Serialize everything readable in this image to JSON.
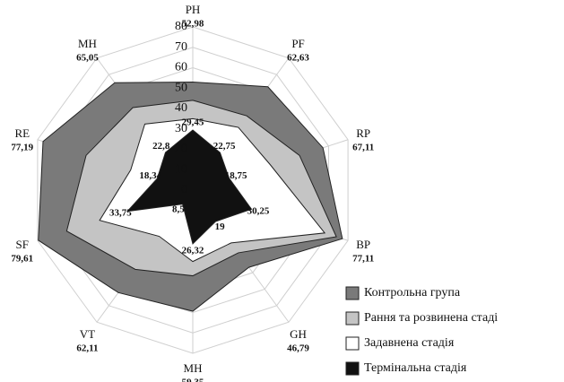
{
  "chart_data": {
    "type": "radar",
    "categories": [
      "PH",
      "PF",
      "RP",
      "BP",
      "GH",
      "MH",
      "VT",
      "SF",
      "RE",
      "MH"
    ],
    "ylim": [
      0,
      80
    ],
    "yticks": [
      0,
      10,
      20,
      30,
      40,
      50,
      60,
      70,
      80
    ],
    "grid": true,
    "legend": "lower right",
    "series": [
      {
        "name": "Контрольна група",
        "color": "#7a7a7a",
        "values": [
          52.98,
          62.63,
          67.11,
          77.11,
          46.79,
          59.35,
          62.11,
          79.61,
          77.19,
          65.05
        ],
        "value_labels": [
          "52,98",
          "62,63",
          "67,11",
          "77,11",
          "46,79",
          "59,35",
          "62,11",
          "79,61",
          "77,19",
          "65,05"
        ]
      },
      {
        "name": "Рання та розвинена стаді",
        "color": "#c4c4c4",
        "values": [
          44,
          45,
          55,
          74,
          38,
          42,
          48,
          65,
          55,
          50
        ]
      },
      {
        "name": "Задавнена стадія",
        "color": "#ffffff",
        "values": [
          35,
          38,
          40,
          68,
          32,
          35,
          28,
          48,
          32,
          40
        ]
      },
      {
        "name": "Термінальна стадія",
        "color": "#111111",
        "values": [
          29.45,
          22.75,
          18.75,
          30.25,
          19,
          26.32,
          8.5,
          33.75,
          18.34,
          22.8
        ],
        "value_labels": [
          "29,45",
          "22,75",
          "18,75",
          "30,25",
          "19",
          "26,32",
          "8,5",
          "33,75",
          "18,34",
          "22,8"
        ]
      }
    ]
  }
}
